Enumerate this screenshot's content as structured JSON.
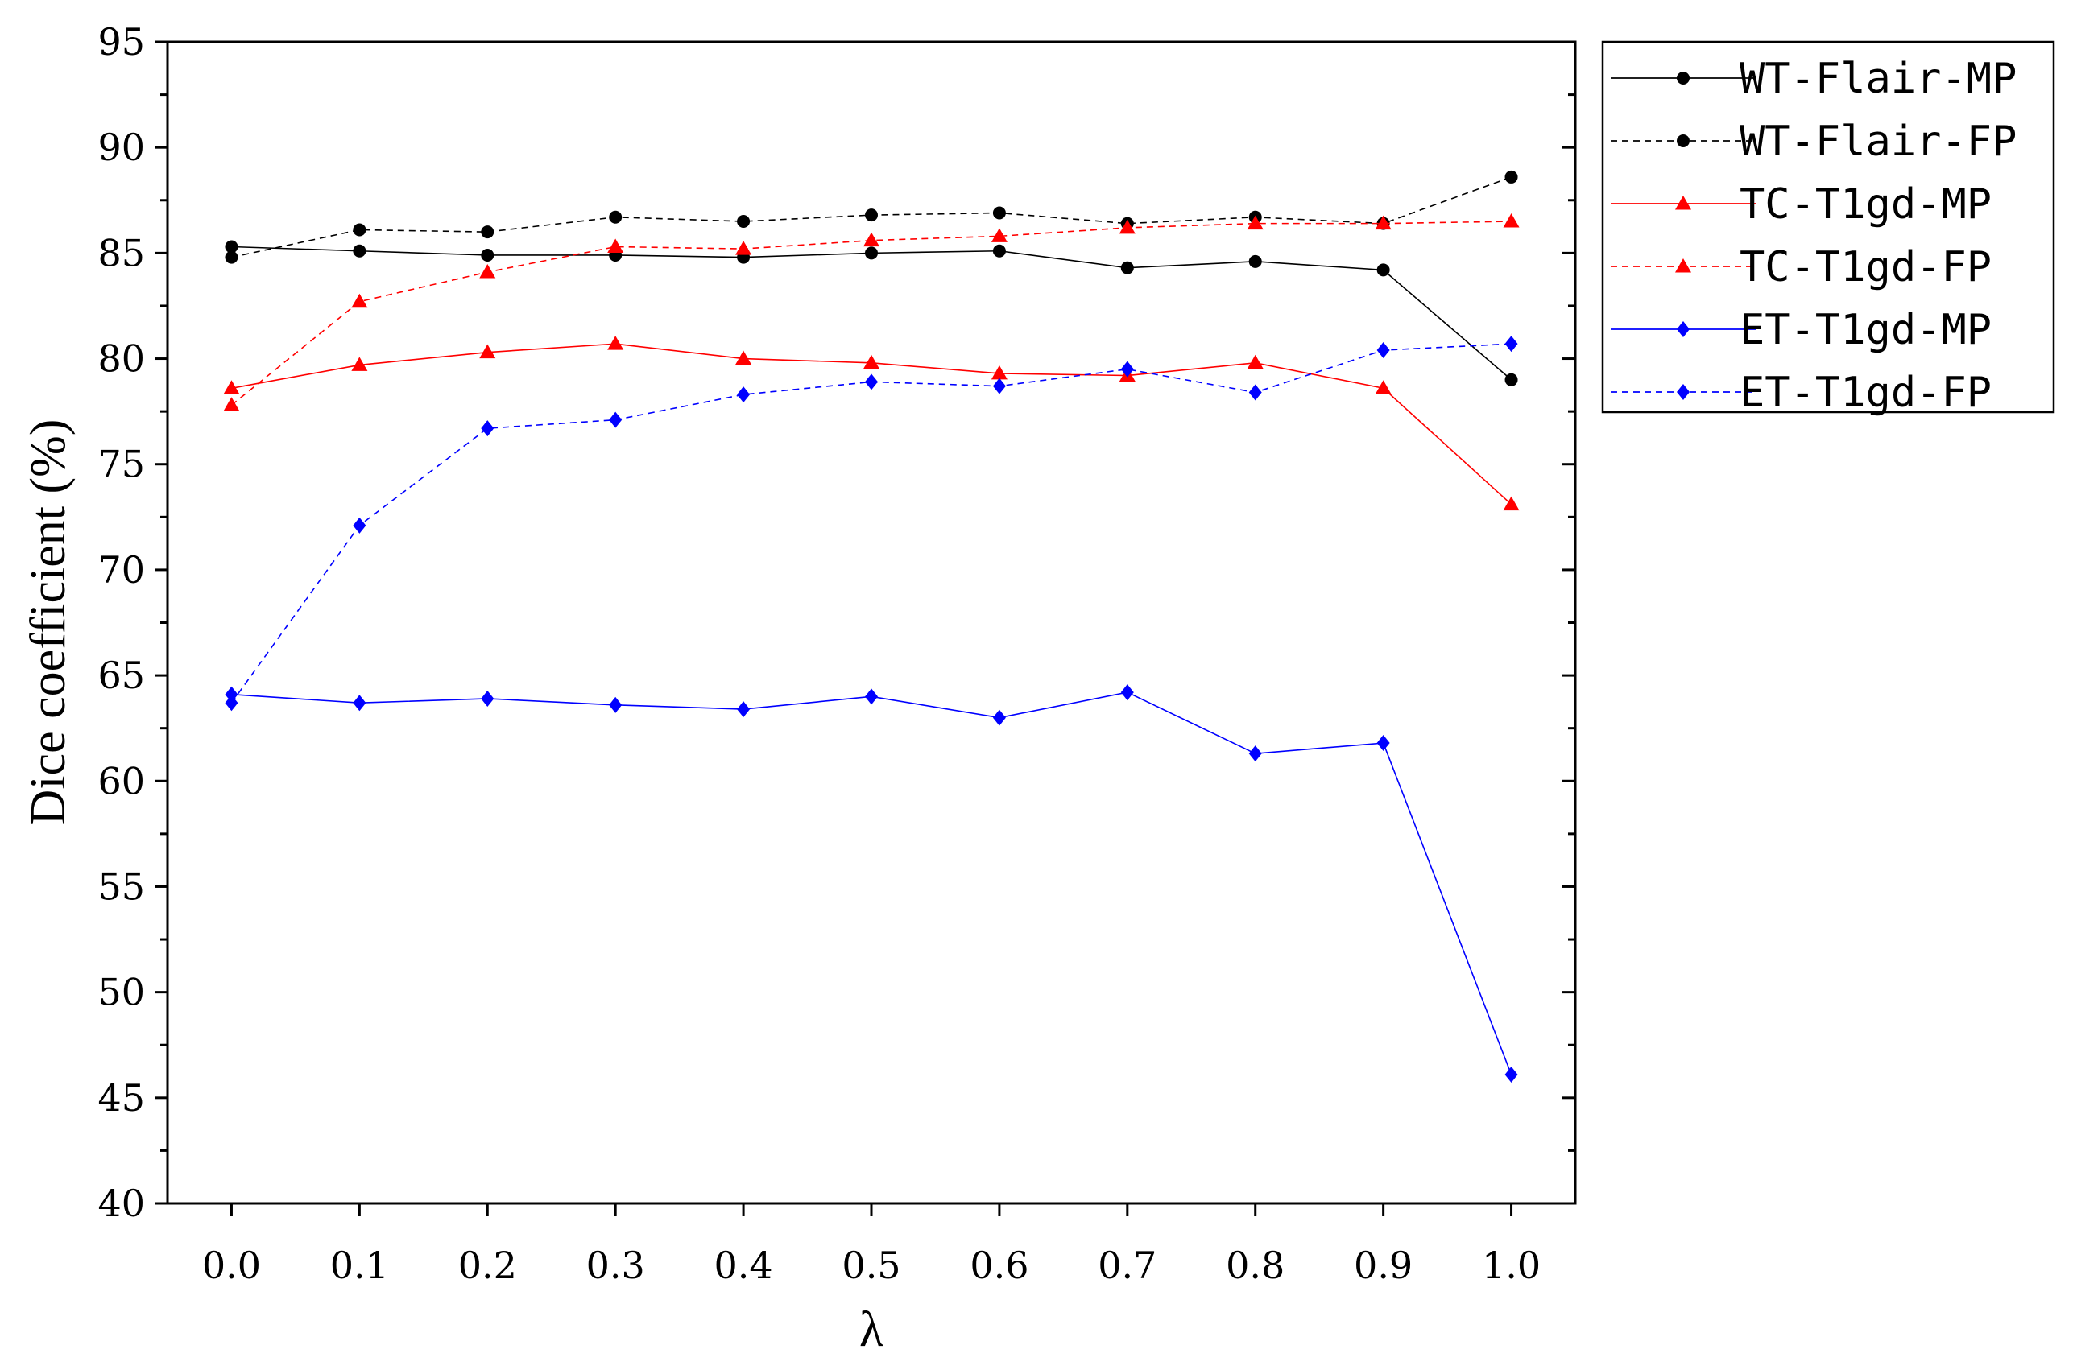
{
  "chart_data": {
    "type": "line",
    "xlabel": "λ",
    "ylabel": "Dice coefficient (%)",
    "xlim": [
      -0.05,
      1.05
    ],
    "ylim": [
      40,
      95
    ],
    "x": [
      0.0,
      0.1,
      0.2,
      0.3,
      0.4,
      0.5,
      0.6,
      0.7,
      0.8,
      0.9,
      1.0
    ],
    "x_tick_labels": [
      "0.0",
      "0.1",
      "0.2",
      "0.3",
      "0.4",
      "0.5",
      "0.6",
      "0.7",
      "0.8",
      "0.9",
      "1.0"
    ],
    "y_ticks": [
      40,
      45,
      50,
      55,
      60,
      65,
      70,
      75,
      80,
      85,
      90,
      95
    ],
    "y_tick_labels": [
      "40",
      "45",
      "50",
      "55",
      "60",
      "65",
      "70",
      "75",
      "80",
      "85",
      "90",
      "95"
    ],
    "grid": false,
    "legend_position": "outside-top-right",
    "series": [
      {
        "name": "WT-Flair-MP",
        "color": "#000000",
        "dash": "solid",
        "marker": "circle",
        "values": [
          85.3,
          85.1,
          84.9,
          84.9,
          84.8,
          85.0,
          85.1,
          84.3,
          84.6,
          84.2,
          79.0
        ]
      },
      {
        "name": "WT-Flair-FP",
        "color": "#000000",
        "dash": "dashed",
        "marker": "circle",
        "values": [
          84.8,
          86.1,
          86.0,
          86.7,
          86.5,
          86.8,
          86.9,
          86.4,
          86.7,
          86.4,
          88.6
        ]
      },
      {
        "name": "TC-T1gd-MP",
        "color": "#ff0000",
        "dash": "solid",
        "marker": "triangle",
        "values": [
          78.6,
          79.7,
          80.3,
          80.7,
          80.0,
          79.8,
          79.3,
          79.2,
          79.8,
          78.6,
          73.1
        ]
      },
      {
        "name": "TC-T1gd-FP",
        "color": "#ff0000",
        "dash": "dashed",
        "marker": "triangle",
        "values": [
          77.8,
          82.7,
          84.1,
          85.3,
          85.2,
          85.6,
          85.8,
          86.2,
          86.4,
          86.4,
          86.5
        ]
      },
      {
        "name": "ET-T1gd-MP",
        "color": "#0000ff",
        "dash": "solid",
        "marker": "diamond",
        "values": [
          64.1,
          63.7,
          63.9,
          63.6,
          63.4,
          64.0,
          63.0,
          64.2,
          61.3,
          61.8,
          46.1
        ]
      },
      {
        "name": "ET-T1gd-FP",
        "color": "#0000ff",
        "dash": "dashed",
        "marker": "diamond",
        "values": [
          63.7,
          72.1,
          76.7,
          77.1,
          78.3,
          78.9,
          78.7,
          79.5,
          78.4,
          80.4,
          80.7
        ]
      }
    ]
  }
}
